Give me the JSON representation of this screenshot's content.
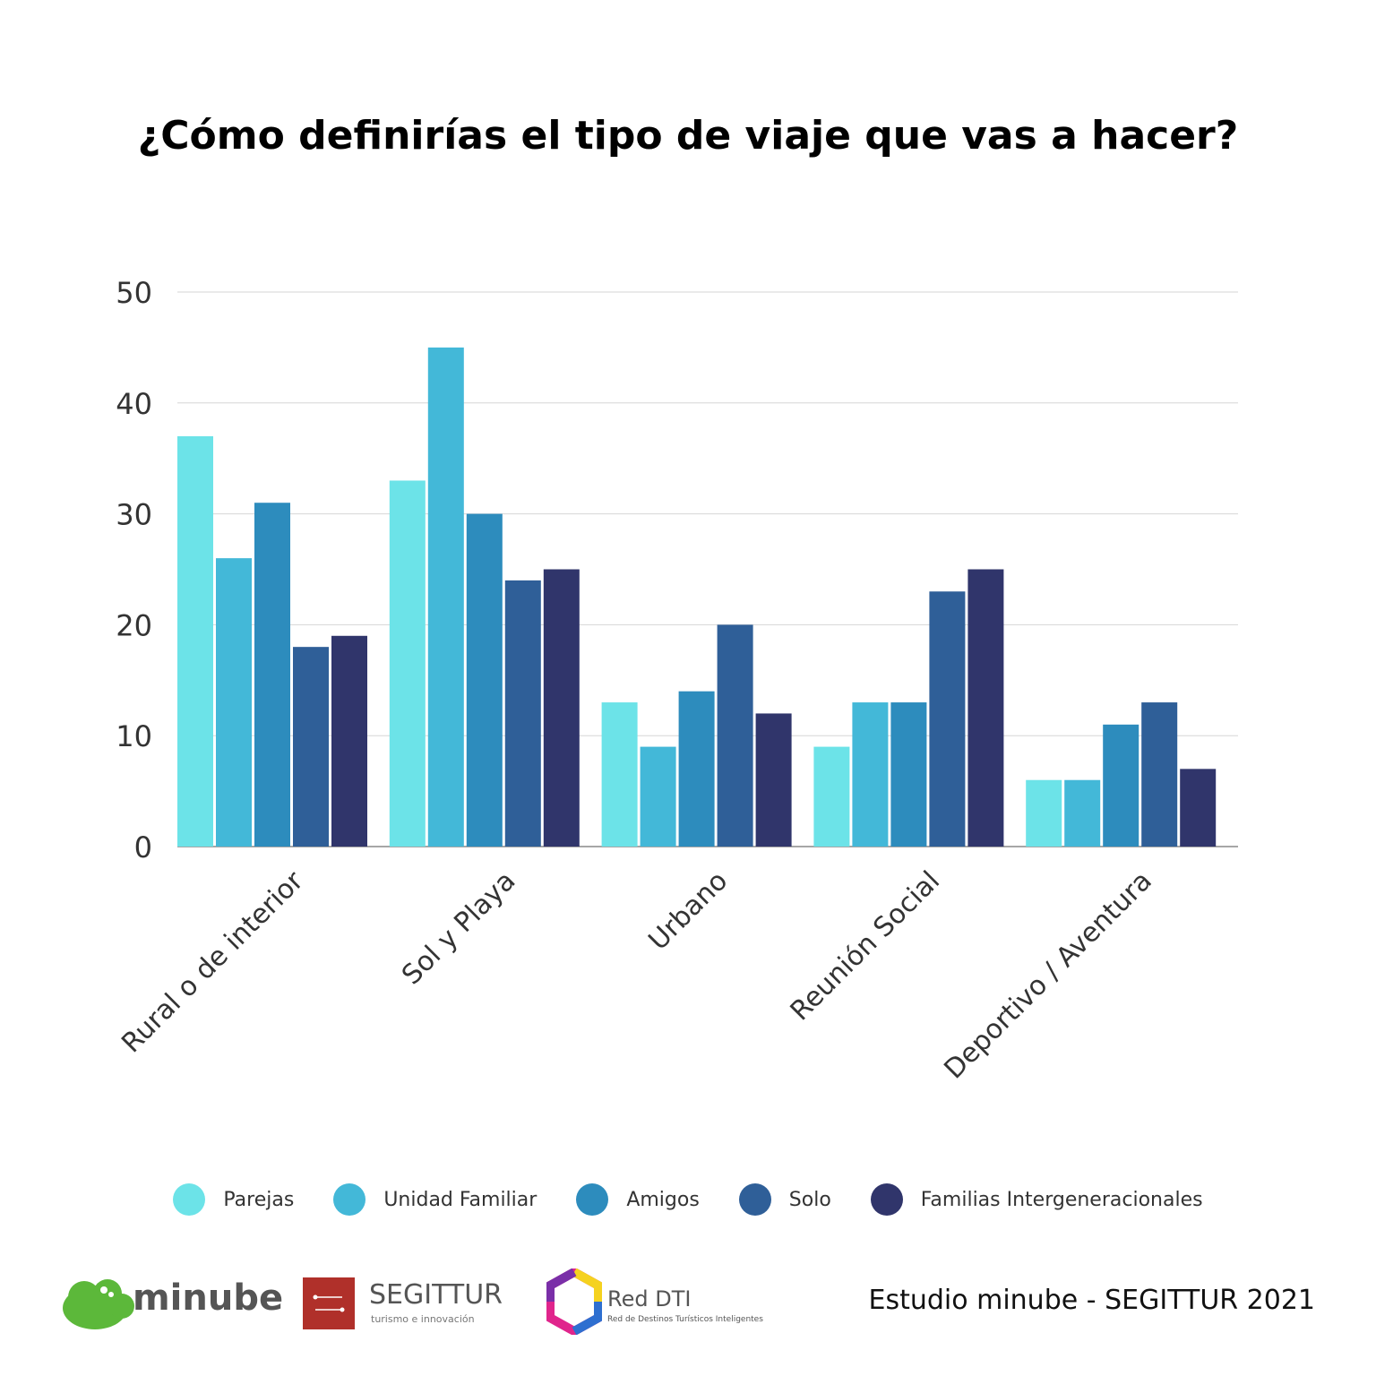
{
  "chart_data": {
    "type": "bar",
    "title": "¿Cómo definirías el tipo de viaje que vas a hacer?",
    "categories": [
      "Rural o de interior",
      "Sol y Playa",
      "Urbano",
      "Reunión Social",
      "Deportivo / Aventura"
    ],
    "series": [
      {
        "name": "Parejas",
        "color": "#6ce3e8",
        "values": [
          37,
          33,
          13,
          9,
          6
        ]
      },
      {
        "name": "Unidad Familiar",
        "color": "#43b8d8",
        "values": [
          26,
          45,
          9,
          13,
          6
        ]
      },
      {
        "name": "Amigos",
        "color": "#2d8cbd",
        "values": [
          31,
          30,
          14,
          13,
          11
        ]
      },
      {
        "name": "Solo",
        "color": "#2f5f98",
        "values": [
          18,
          24,
          20,
          23,
          13
        ]
      },
      {
        "name": "Familias Intergeneracionales",
        "color": "#30356b",
        "values": [
          19,
          25,
          12,
          25,
          7
        ]
      }
    ],
    "yticks": [
      0,
      10,
      20,
      30,
      40,
      50
    ],
    "ylim": [
      0,
      50
    ],
    "grid": true,
    "legend_position": "bottom"
  },
  "footer": {
    "credit": "Estudio minube - SEGITTUR 2021",
    "logos": {
      "minube": "minube",
      "segittur": "SEGITTUR",
      "segittur_sub": "turismo e innovación",
      "reddti": "Red DTI",
      "reddti_sub": "Red de Destinos Turísticos Inteligentes"
    }
  }
}
